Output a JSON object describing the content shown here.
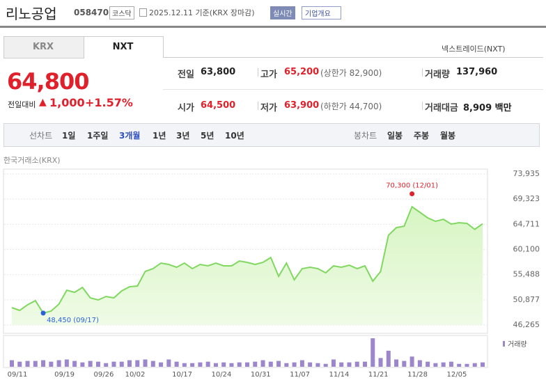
{
  "header": {
    "name": "리노공업",
    "code": "058470",
    "market": "코스닥",
    "date": "2025.12.11 기준(KRX 장마감)",
    "realtime": "실시간",
    "company": "기업개요"
  },
  "tabs": [
    "KRX",
    "NXT"
  ],
  "nxt_link": "넥스트레이드(NXT)",
  "price": {
    "current": "64,800",
    "change_label": "전일대비",
    "change": "1,000",
    "rate": "+1.57%"
  },
  "stats": [
    [
      {
        "label": "전일",
        "value": "63,800"
      },
      {
        "label": "고가",
        "value": "65,200",
        "limit": "(상한가 82,900)"
      },
      {
        "label": "거래량",
        "value": "137,960"
      }
    ],
    [
      {
        "label": "시가",
        "value": "64,500"
      },
      {
        "label": "저가",
        "value": "63,900",
        "limit": "(하한가 44,700)"
      },
      {
        "label": "거래대금",
        "value": "8,909 백만"
      }
    ]
  ],
  "controls": {
    "line_label": "선차트",
    "periods": [
      "1일",
      "1주일",
      "3개월",
      "1년",
      "3년",
      "5년",
      "10년"
    ],
    "candle_label": "봉차트",
    "candles": [
      "일봉",
      "주봉",
      "월봉"
    ]
  },
  "chart_data": {
    "type": "area",
    "source": "한국거래소(KRX)",
    "color": "#80d860",
    "categories": [
      "09/11",
      null,
      null,
      null,
      null,
      null,
      "09/19",
      null,
      null,
      null,
      null,
      "09/26",
      null,
      null,
      null,
      "10/02",
      null,
      null,
      null,
      null,
      null,
      "10/17",
      null,
      null,
      null,
      null,
      "10/24",
      null,
      null,
      null,
      null,
      "10/31",
      null,
      null,
      null,
      null,
      "11/07",
      null,
      null,
      null,
      null,
      "11/14",
      null,
      null,
      null,
      null,
      "11/21",
      null,
      null,
      null,
      null,
      "11/28",
      null,
      null,
      null,
      null,
      "12/05",
      null,
      null,
      null,
      null
    ],
    "values": [
      49450,
      48940,
      49960,
      50730,
      48450,
      48815,
      50090,
      52640,
      52260,
      53150,
      51240,
      50855,
      51490,
      51240,
      52510,
      53280,
      53400,
      56080,
      56590,
      57610,
      57360,
      56850,
      57610,
      56590,
      57360,
      57100,
      57610,
      57100,
      57100,
      57990,
      57740,
      57360,
      57740,
      58630,
      55190,
      57610,
      54550,
      56590,
      56850,
      56590,
      55830,
      57100,
      56850,
      57230,
      56590,
      57100,
      54300,
      56080,
      62710,
      64110,
      64370,
      67940,
      66920,
      65900,
      65260,
      65640,
      64750,
      65010,
      64880,
      63800,
      64800
    ],
    "ylim": [
      46265,
      73935
    ],
    "yticks": [
      {
        "value": 73935,
        "label": "73,935"
      },
      {
        "value": 69323,
        "label": "69,323"
      },
      {
        "value": 64711,
        "label": "64,711"
      },
      {
        "value": 60100,
        "label": "60,100"
      },
      {
        "value": 55488,
        "label": "55,488"
      },
      {
        "value": 50877,
        "label": "50,877"
      },
      {
        "value": 46265,
        "label": "46,265"
      }
    ],
    "grid": true,
    "annotations": [
      {
        "label": "48,450 (09/17)",
        "value": 48450,
        "color": "#2a62d8"
      },
      {
        "label": "70,300 (12/01)",
        "value": 70300,
        "color": "#e0202a"
      }
    ],
    "volume": {
      "name": "거래량",
      "color": "#9c86cc",
      "ylim": [
        0,
        920000
      ],
      "values": [
        207000,
        161000,
        184000,
        184000,
        207000,
        161000,
        207000,
        230000,
        184000,
        138000,
        184000,
        161000,
        115000,
        161000,
        161000,
        207000,
        207000,
        230000,
        184000,
        138000,
        230000,
        161000,
        115000,
        115000,
        138000,
        161000,
        115000,
        138000,
        115000,
        138000,
        138000,
        161000,
        207000,
        161000,
        184000,
        115000,
        138000,
        207000,
        138000,
        115000,
        92000,
        230000,
        138000,
        138000,
        161000,
        161000,
        897000,
        276000,
        506000,
        230000,
        184000,
        322000,
        207000,
        161000,
        115000,
        138000,
        161000,
        92000,
        92000,
        115000,
        137960
      ]
    }
  }
}
